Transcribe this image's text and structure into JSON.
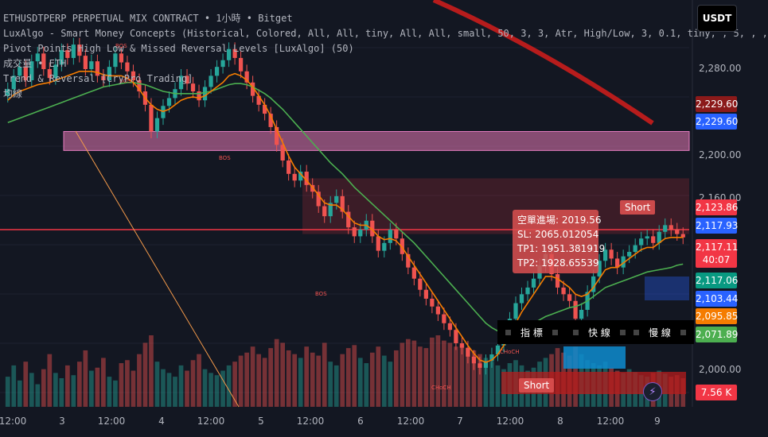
{
  "header_lines": [
    "ETHUSDTPERP PERPETUAL MIX CONTRACT • 1小時 • Bitget",
    "LuxAlgo - Smart Money Concepts (Historical, Colored, All, All, tiny, All, All, small, 50, 3, 3, Atr, High/Low, 3, 0.1, tiny, , 5,        ,        ,",
    "Pivot Points High Low & Missed Reversal Levels [LuxAlgo] (50)",
    "成交量 • ETH",
    "Trend & Reversal [CryPro Trading]",
    "均線"
  ],
  "currency_button": "USDT",
  "price_axis": {
    "ticks": [
      "2,280.00",
      "2,200.00",
      "2,160.00",
      "2,000.00"
    ]
  },
  "price_labels": [
    {
      "text": "2,229.60",
      "bg": "#8b1a1a",
      "fg": "#ffffff"
    },
    {
      "text": "2,229.60",
      "bg": "#2962ff",
      "fg": "#ffffff"
    },
    {
      "text": "2,123.86",
      "bg": "#f23645",
      "fg": "#ffffff"
    },
    {
      "text": "2,117.93",
      "bg": "#2962ff",
      "fg": "#ffffff"
    },
    {
      "text": "2,117.11",
      "bg": "#f23645",
      "fg": "#ffffff"
    },
    {
      "text": "40:07",
      "bg": "#f23645",
      "fg": "#ffffff"
    },
    {
      "text": "2,117.06",
      "bg": "#089981",
      "fg": "#ffffff"
    },
    {
      "text": "2,103.44",
      "bg": "#2962ff",
      "fg": "#ffffff"
    },
    {
      "text": "2,095.85",
      "bg": "#f57c00",
      "fg": "#ffffff"
    },
    {
      "text": "2,071.89",
      "bg": "#4caf50",
      "fg": "#ffffff"
    },
    {
      "text": "7.56 K",
      "bg": "#f23645",
      "fg": "#ffffff"
    }
  ],
  "time_axis": [
    "12:00",
    "3",
    "12:00",
    "4",
    "12:00",
    "5",
    "12:00",
    "6",
    "12:00",
    "7",
    "12:00",
    "8",
    "12:00",
    "9"
  ],
  "signal_box": {
    "line1": "空單進場: 2019.56",
    "line2": "SL: 2065.012054",
    "line3": "TP1: 1951.381919",
    "line4": "TP2: 1928.65539"
  },
  "short_labels": [
    "Short",
    "Short"
  ],
  "ma_legend": {
    "label1": "指 標",
    "label2": "快 線",
    "label3": "慢 線"
  },
  "chart_annotations": [
    "BOS",
    "BOS",
    "BOS",
    "BOS",
    "CHoCH",
    "CHoCH"
  ],
  "colors": {
    "up": "#26a69a",
    "down": "#ef5350",
    "background": "#131722"
  },
  "chart_data": {
    "type": "candlestick",
    "title": "ETHUSDTPERP PERPETUAL MIX CONTRACT • 1小時 • Bitget",
    "ylim": [
      1965,
      2330
    ],
    "close": [
      2250,
      2262,
      2270,
      2258,
      2275,
      2282,
      2268,
      2260,
      2272,
      2285,
      2278,
      2290,
      2280,
      2268,
      2275,
      2262,
      2258,
      2270,
      2282,
      2274,
      2266,
      2258,
      2248,
      2236,
      2212,
      2224,
      2235,
      2242,
      2250,
      2262,
      2255,
      2248,
      2240,
      2252,
      2262,
      2270,
      2276,
      2286,
      2278,
      2266,
      2256,
      2244,
      2236,
      2228,
      2216,
      2200,
      2186,
      2174,
      2168,
      2176,
      2164,
      2158,
      2145,
      2136,
      2148,
      2154,
      2140,
      2126,
      2118,
      2124,
      2132,
      2118,
      2105,
      2112,
      2124,
      2116,
      2102,
      2090,
      2080,
      2070,
      2062,
      2055,
      2048,
      2040,
      2034,
      2022,
      2018,
      2010,
      2004,
      2000,
      2006,
      2012,
      2020,
      2030,
      2044,
      2058,
      2066,
      2072,
      2080,
      2092,
      2102,
      2084,
      2072,
      2066,
      2060,
      2044,
      2052,
      2068,
      2082,
      2096,
      2106,
      2098,
      2090,
      2100,
      2104,
      2110,
      2116,
      2118,
      2112,
      2122,
      2128,
      2124,
      2120,
      2117
    ],
    "ma_fast": [
      2240,
      2245,
      2248,
      2250,
      2252,
      2254,
      2255,
      2256,
      2258,
      2260,
      2262,
      2264,
      2266,
      2266,
      2266,
      2265,
      2263,
      2262,
      2262,
      2262,
      2260,
      2256,
      2250,
      2242,
      2236,
      2232,
      2230,
      2232,
      2236,
      2240,
      2242,
      2243,
      2242,
      2244,
      2248,
      2252,
      2256,
      2262,
      2264,
      2262,
      2258,
      2252,
      2244,
      2236,
      2226,
      2214,
      2202,
      2190,
      2180,
      2174,
      2168,
      2162,
      2155,
      2148,
      2146,
      2146,
      2142,
      2136,
      2130,
      2128,
      2128,
      2124,
      2118,
      2115,
      2116,
      2114,
      2108,
      2100,
      2092,
      2084,
      2076,
      2068,
      2060,
      2052,
      2044,
      2036,
      2028,
      2020,
      2013,
      2007,
      2005,
      2007,
      2012,
      2020,
      2030,
      2040,
      2050,
      2058,
      2066,
      2074,
      2082,
      2082,
      2080,
      2076,
      2072,
      2066,
      2064,
      2066,
      2072,
      2080,
      2088,
      2090,
      2090,
      2094,
      2098,
      2102,
      2106,
      2108,
      2108,
      2112,
      2116,
      2117,
      2117,
      2117
    ],
    "ma_slow": [
      2220,
      2222,
      2224,
      2226,
      2228,
      2230,
      2232,
      2234,
      2236,
      2238,
      2240,
      2242,
      2244,
      2246,
      2248,
      2250,
      2252,
      2253,
      2254,
      2255,
      2256,
      2256,
      2255,
      2254,
      2252,
      2250,
      2248,
      2247,
      2246,
      2246,
      2246,
      2246,
      2246,
      2247,
      2248,
      2250,
      2252,
      2254,
      2255,
      2255,
      2254,
      2252,
      2249,
      2246,
      2242,
      2237,
      2232,
      2226,
      2220,
      2214,
      2208,
      2202,
      2196,
      2190,
      2184,
      2179,
      2174,
      2168,
      2162,
      2157,
      2152,
      2147,
      2142,
      2137,
      2132,
      2127,
      2122,
      2117,
      2112,
      2106,
      2100,
      2094,
      2088,
      2082,
      2076,
      2070,
      2064,
      2058,
      2052,
      2046,
      2040,
      2036,
      2033,
      2032,
      2032,
      2033,
      2035,
      2037,
      2040,
      2043,
      2046,
      2048,
      2050,
      2052,
      2054,
      2055,
      2057,
      2060,
      2064,
      2068,
      2072,
      2074,
      2076,
      2078,
      2080,
      2082,
      2084,
      2086,
      2087,
      2088,
      2089,
      2090,
      2092,
      2093
    ],
    "volume": [
      40,
      55,
      35,
      60,
      45,
      30,
      50,
      70,
      45,
      38,
      55,
      42,
      60,
      75,
      48,
      52,
      65,
      40,
      35,
      58,
      62,
      48,
      70,
      85,
      95,
      60,
      50,
      45,
      40,
      55,
      48,
      62,
      70,
      50,
      45,
      42,
      48,
      55,
      60,
      68,
      72,
      80,
      70,
      65,
      78,
      90,
      85,
      75,
      70,
      65,
      80,
      72,
      68,
      85,
      60,
      55,
      70,
      78,
      82,
      65,
      58,
      72,
      80,
      68,
      60,
      75,
      85,
      90,
      88,
      80,
      78,
      92,
      95,
      88,
      85,
      80,
      82,
      78,
      75,
      70,
      65,
      60,
      55,
      50,
      58,
      62,
      55,
      48,
      52,
      60,
      65,
      70,
      78,
      72,
      68,
      80,
      70,
      62,
      58,
      55,
      60,
      52,
      48,
      45,
      50,
      46,
      42,
      40,
      45,
      48,
      44,
      40,
      42,
      38
    ],
    "resistance_zone_upper": [
      2195,
      2212
    ],
    "resistance_zone_lower": [
      2120,
      2170
    ]
  }
}
